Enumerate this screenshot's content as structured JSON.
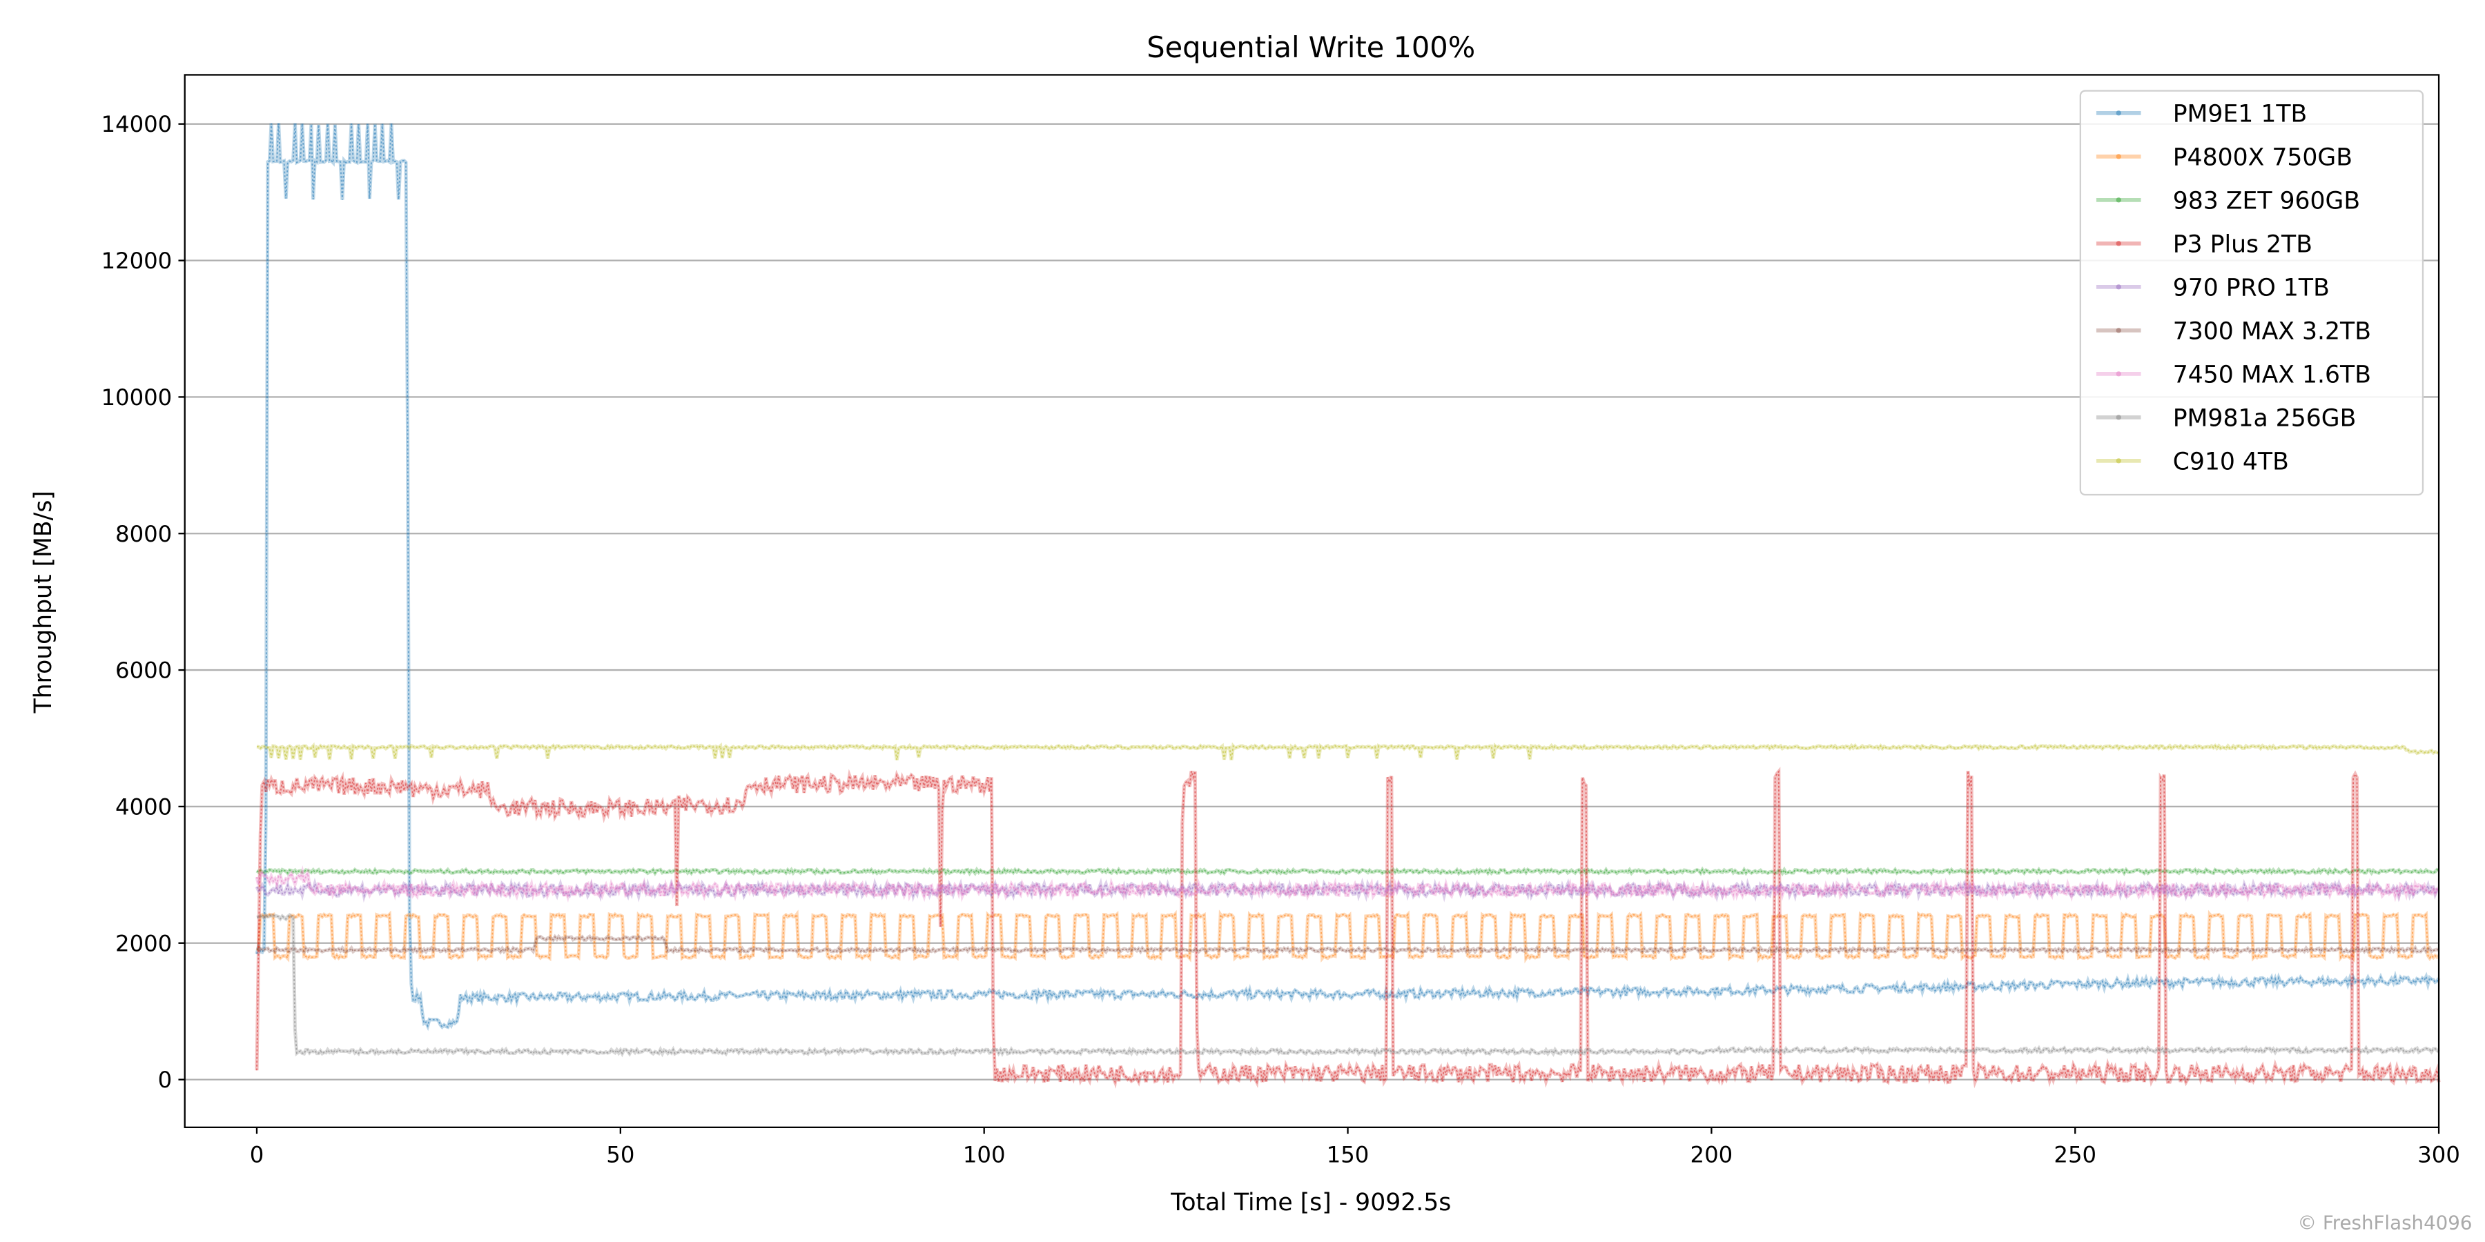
{
  "chart_data": {
    "type": "line",
    "title": "Sequential Write 100%",
    "xlabel": "Total Time [s] - 9092.5s",
    "ylabel": "Throughput [MB/s]",
    "xlim": [
      -9.9,
      300
    ],
    "ylim": [
      -700,
      14720
    ],
    "xticks": [
      0,
      50,
      100,
      150,
      200,
      250,
      300
    ],
    "yticks": [
      0,
      2000,
      4000,
      6000,
      8000,
      10000,
      12000,
      14000
    ],
    "grid": "horizontal",
    "legend_position": "top-right",
    "watermark": "© FreshFlash4096",
    "series": [
      {
        "name": "PM9E1 1TB",
        "color": "#1f77b4",
        "noise": 60,
        "points": [
          [
            0,
            1900
          ],
          [
            1.2,
            1900
          ],
          [
            1.5,
            13450
          ],
          [
            20.5,
            13450
          ],
          [
            20.8,
            8700
          ],
          [
            21,
            2500
          ],
          [
            21.3,
            1200
          ],
          [
            22.5,
            1200
          ],
          [
            23,
            830
          ],
          [
            27.5,
            830
          ],
          [
            28,
            1200
          ],
          [
            100,
            1250
          ],
          [
            150,
            1250
          ],
          [
            200,
            1300
          ],
          [
            230,
            1350
          ],
          [
            260,
            1420
          ],
          [
            300,
            1450
          ]
        ],
        "spikes_high": {
          "value": 14000,
          "from": 1.8,
          "to": 20,
          "every": 1.1
        },
        "dips": [
          [
            3.9,
            12900
          ],
          [
            7.8,
            12900
          ],
          [
            11.7,
            12900
          ],
          [
            15.6,
            12900
          ],
          [
            19.5,
            12900
          ]
        ]
      },
      {
        "name": "P4800X 750GB",
        "color": "#ff7f0e",
        "noise": 20,
        "oscillation": {
          "low": 1800,
          "high": 2400,
          "period_s": 4,
          "from": 0.5,
          "to": 300
        },
        "points": [
          [
            0,
            1900
          ],
          [
            300,
            1900
          ]
        ]
      },
      {
        "name": "983 ZET 960GB",
        "color": "#2ca02c",
        "noise": 25,
        "points": [
          [
            0,
            3050
          ],
          [
            300,
            3050
          ]
        ]
      },
      {
        "name": "P3 Plus 2TB",
        "color": "#d62728",
        "noise": 130,
        "points": [
          [
            0,
            250
          ],
          [
            0.6,
            4300
          ],
          [
            21,
            4300
          ],
          [
            21.3,
            4250
          ],
          [
            32,
            4250
          ],
          [
            32.5,
            3980
          ],
          [
            57.5,
            3980
          ],
          [
            57.7,
            2300
          ],
          [
            58,
            4030
          ],
          [
            67,
            4030
          ],
          [
            67.4,
            4330
          ],
          [
            93.8,
            4330
          ],
          [
            94,
            2300
          ],
          [
            94.3,
            4330
          ],
          [
            101,
            4330
          ],
          [
            101.3,
            90
          ],
          [
            127,
            90
          ],
          [
            127.3,
            4400
          ],
          [
            129,
            4400
          ],
          [
            129.3,
            90
          ],
          [
            300,
            90
          ]
        ],
        "spikes_high": {
          "value": 4400,
          "at": [
            155.8,
            182.5,
            209,
            235.5,
            262,
            288.5
          ]
        }
      },
      {
        "name": "970 PRO 1TB",
        "color": "#9467bd",
        "noise": 90,
        "points": [
          [
            0,
            2780
          ],
          [
            300,
            2780
          ]
        ]
      },
      {
        "name": "7300 MAX 3.2TB",
        "color": "#8c564b",
        "noise": 25,
        "points": [
          [
            0,
            1900
          ],
          [
            38,
            1900
          ],
          [
            38.5,
            2070
          ],
          [
            56,
            2070
          ],
          [
            56.5,
            1900
          ],
          [
            300,
            1900
          ]
        ]
      },
      {
        "name": "7450 MAX 1.6TB",
        "color": "#e377c2",
        "noise": 90,
        "points": [
          [
            0,
            2950
          ],
          [
            7,
            2950
          ],
          [
            7.5,
            2780
          ],
          [
            300,
            2780
          ]
        ]
      },
      {
        "name": "PM981a 256GB",
        "color": "#7f7f7f",
        "noise": 30,
        "points": [
          [
            0,
            2380
          ],
          [
            5,
            2380
          ],
          [
            5.3,
            410
          ],
          [
            200,
            410
          ],
          [
            201,
            430
          ],
          [
            300,
            430
          ]
        ]
      },
      {
        "name": "C910 4TB",
        "color": "#bcbd22",
        "noise": 20,
        "points": [
          [
            0,
            4870
          ],
          [
            295,
            4870
          ],
          [
            296,
            4800
          ],
          [
            300,
            4800
          ]
        ],
        "dips": [
          [
            2,
            4700
          ],
          [
            3,
            4700
          ],
          [
            4,
            4700
          ],
          [
            5,
            4700
          ],
          [
            6,
            4700
          ],
          [
            8,
            4700
          ],
          [
            10,
            4700
          ],
          [
            13,
            4700
          ],
          [
            16,
            4700
          ],
          [
            19,
            4700
          ],
          [
            24,
            4700
          ],
          [
            33,
            4700
          ],
          [
            40,
            4700
          ],
          [
            63,
            4700
          ],
          [
            64,
            4700
          ],
          [
            65,
            4700
          ],
          [
            88,
            4700
          ],
          [
            91,
            4700
          ],
          [
            133,
            4700
          ],
          [
            134,
            4700
          ],
          [
            142,
            4700
          ],
          [
            144,
            4700
          ],
          [
            146,
            4700
          ],
          [
            150,
            4700
          ],
          [
            154,
            4700
          ],
          [
            160,
            4700
          ],
          [
            165,
            4700
          ],
          [
            170,
            4700
          ],
          [
            175,
            4700
          ]
        ]
      }
    ]
  }
}
